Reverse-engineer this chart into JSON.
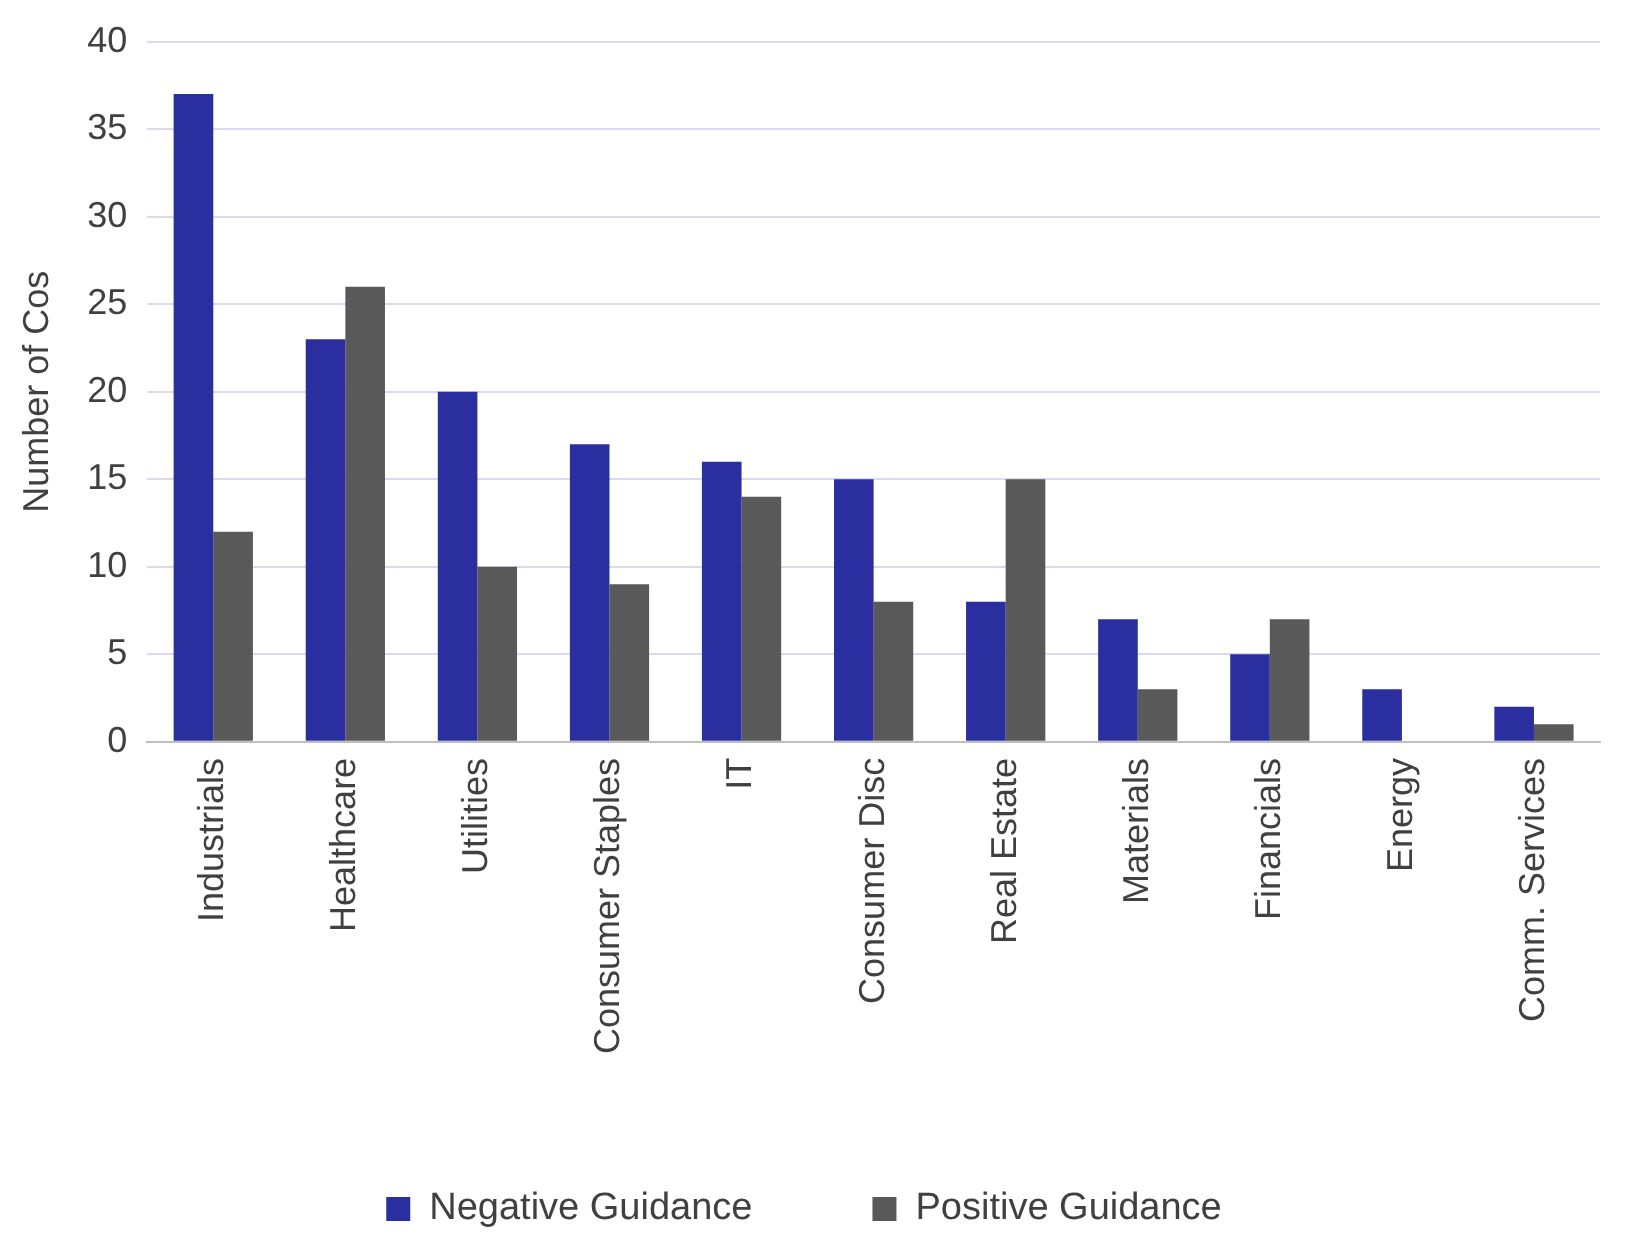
{
  "chart_data": {
    "type": "bar",
    "ylabel": "Number of Cos",
    "categories": [
      "Industrials",
      "Healthcare",
      "Utilities",
      "Consumer Staples",
      "IT",
      "Consumer Disc",
      "Real Estate",
      "Materials",
      "Financials",
      "Energy",
      "Comm. Services"
    ],
    "series": [
      {
        "name": "Negative Guidance",
        "color": "#2b2e9e",
        "values": [
          37,
          23,
          20,
          17,
          16,
          15,
          8,
          7,
          5,
          3,
          2
        ]
      },
      {
        "name": "Positive Guidance",
        "color": "#595959",
        "values": [
          12,
          26,
          10,
          9,
          14,
          8,
          15,
          3,
          7,
          0,
          1
        ]
      }
    ],
    "ylim": [
      0,
      40
    ],
    "yticks": [
      0,
      5,
      10,
      15,
      20,
      25,
      30,
      35,
      40
    ],
    "grid": "y",
    "legend": "bottom"
  }
}
